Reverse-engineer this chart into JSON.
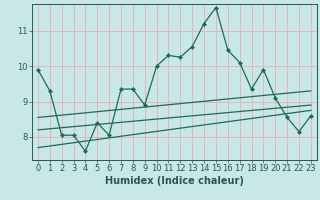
{
  "xlabel": "Humidex (Indice chaleur)",
  "background_color": "#c8e8e8",
  "grid_color": "#e8b4b4",
  "line_color": "#1a6b5a",
  "main_series_x": [
    0,
    1,
    2,
    3,
    4,
    5,
    6,
    7,
    8,
    9,
    10,
    11,
    12,
    13,
    14,
    15,
    16,
    17,
    18,
    19,
    20,
    21,
    22,
    23
  ],
  "main_series_y": [
    9.9,
    9.3,
    8.05,
    8.05,
    7.6,
    8.4,
    8.05,
    9.35,
    9.35,
    8.9,
    10.0,
    10.3,
    10.25,
    10.55,
    11.2,
    11.65,
    10.45,
    10.1,
    9.35,
    9.9,
    9.1,
    8.55,
    8.15,
    8.6
  ],
  "line1_x": [
    0,
    23
  ],
  "line1_y": [
    8.55,
    9.3
  ],
  "line2_x": [
    0,
    23
  ],
  "line2_y": [
    8.2,
    8.9
  ],
  "line3_x": [
    0,
    23
  ],
  "line3_y": [
    7.7,
    8.75
  ],
  "ylim": [
    7.35,
    11.75
  ],
  "xlim": [
    -0.5,
    23.5
  ],
  "yticks": [
    8,
    9,
    10,
    11
  ],
  "xticks": [
    0,
    1,
    2,
    3,
    4,
    5,
    6,
    7,
    8,
    9,
    10,
    11,
    12,
    13,
    14,
    15,
    16,
    17,
    18,
    19,
    20,
    21,
    22,
    23
  ],
  "tick_fontsize": 6,
  "xlabel_fontsize": 7,
  "spine_color": "#2a5555"
}
